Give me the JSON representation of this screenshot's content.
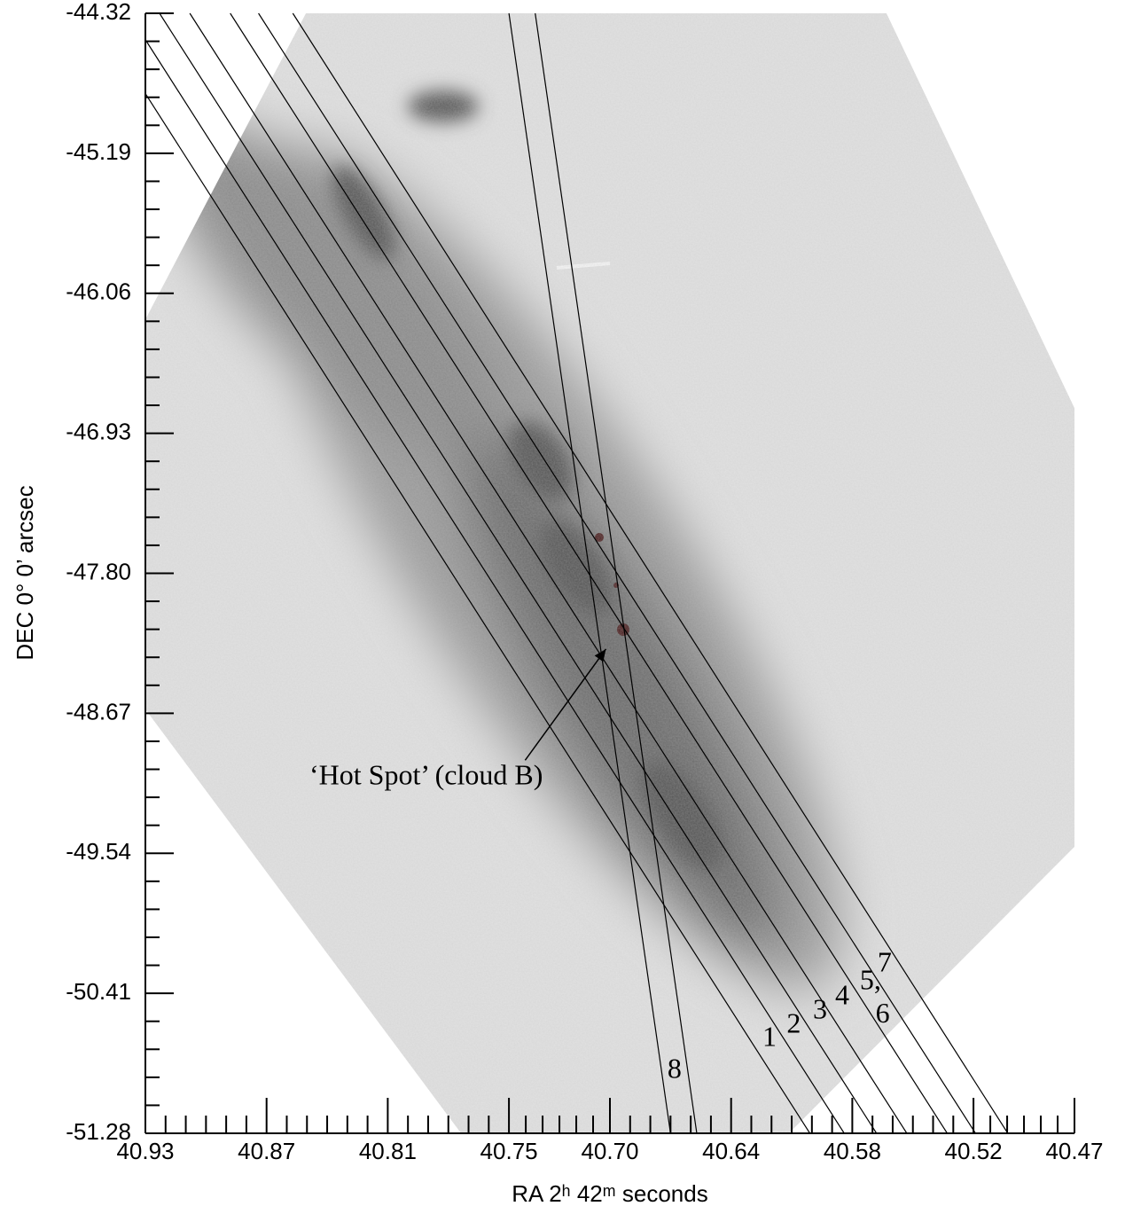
{
  "chart_data": {
    "type": "slit_map",
    "xlabel": "RA 2ʰ 42ᵐ seconds",
    "ylabel": "DEC 0° 0’ arcsec",
    "xlim": [
      40.93,
      40.47
    ],
    "ylim": [
      -44.32,
      -51.28
    ],
    "xticks": [
      40.93,
      40.87,
      40.81,
      40.75,
      {
        "value": 40.7,
        "label": "40.70"
      },
      40.64,
      40.58,
      40.52,
      40.47
    ],
    "yticks": [
      -44.32,
      -45.19,
      -46.06,
      -46.93,
      {
        "value": -47.8,
        "label": "-47.80"
      },
      -48.67,
      -49.54,
      -50.41,
      -51.28
    ],
    "slit_lines": [
      {
        "x": [
          40.93,
          40.601
        ],
        "y": [
          -44.819,
          -51.28
        ]
      },
      {
        "x": [
          40.93,
          40.584
        ],
        "y": [
          -44.484,
          -51.28
        ]
      },
      {
        "x": [
          40.923,
          40.568
        ],
        "y": [
          -44.32,
          -51.28
        ]
      },
      {
        "x": [
          40.908,
          40.553
        ],
        "y": [
          -44.32,
          -51.28
        ]
      },
      {
        "x": [
          40.888,
          40.533
        ],
        "y": [
          -44.32,
          -51.28
        ]
      },
      {
        "x": [
          40.874,
          40.519
        ],
        "y": [
          -44.32,
          -51.28
        ]
      },
      {
        "x": [
          40.857,
          40.503
        ],
        "y": [
          -44.32,
          -51.28
        ]
      },
      {
        "x": [
          40.75,
          40.67
        ],
        "y": [
          -44.32,
          -51.28
        ]
      },
      {
        "x": [
          40.737,
          40.657
        ],
        "y": [
          -44.32,
          -51.28
        ]
      }
    ],
    "slit_labels": [
      {
        "text": "1",
        "x": 40.621,
        "y": -50.696
      },
      {
        "text": "2",
        "x": 40.609,
        "y": -50.613
      },
      {
        "text": "3",
        "x": 40.596,
        "y": -50.525
      },
      {
        "text": "4",
        "x": 40.585,
        "y": -50.437
      },
      {
        "text": "5,",
        "x": 40.571,
        "y": -50.343
      },
      {
        "text": "7",
        "x": 40.564,
        "y": -50.233
      },
      {
        "text": "6",
        "x": 40.565,
        "y": -50.552
      },
      {
        "text": "8",
        "x": 40.668,
        "y": -50.894
      }
    ],
    "annotation": {
      "text": "‘Hot Spot’ (cloud B)",
      "xy": [
        40.702,
        -48.271
      ],
      "xytext": [
        40.791,
        -49.07
      ]
    }
  }
}
